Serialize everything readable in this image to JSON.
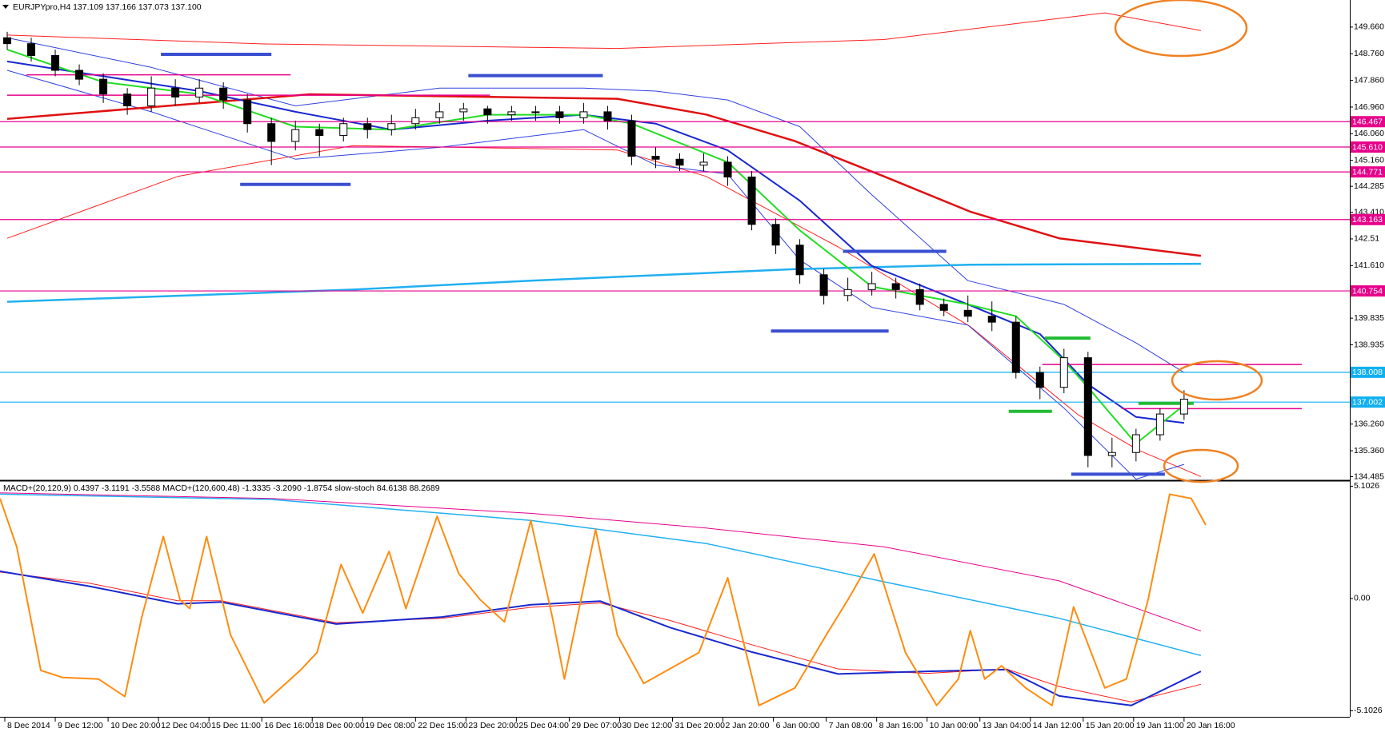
{
  "chart_data": [
    {
      "type": "candlestick",
      "title": "EURJPYpro,H4  137.109 137.166 137.073 137.100",
      "xlim": [
        -0.3,
        55.9
      ],
      "ylim": [
        134.39,
        150.52
      ],
      "yticks": [
        {
          "value": 149.66,
          "label": "149.660"
        },
        {
          "value": 148.76,
          "label": "148.760"
        },
        {
          "value": 147.86,
          "label": "147.860"
        },
        {
          "value": 146.96,
          "label": "146.960"
        },
        {
          "value": 146.06,
          "label": "146.060"
        },
        {
          "value": 145.16,
          "label": "145.160"
        },
        144.285,
        {
          "value": 143.41,
          "label": "143.410"
        },
        142.51,
        {
          "value": 141.61,
          "label": "141.610"
        },
        139.835,
        138.935,
        {
          "value": 136.26,
          "label": "136.260"
        },
        {
          "value": 135.36,
          "label": "135.360"
        },
        134.485
      ],
      "open": [
        149.3,
        149.1,
        148.7,
        148.2,
        147.9,
        147.4,
        147.0,
        147.6,
        147.3,
        147.6,
        147.2,
        146.4,
        145.8,
        146.2,
        146.0,
        146.4,
        146.2,
        146.4,
        146.6,
        146.8,
        146.9,
        146.7,
        146.8,
        146.8,
        146.6,
        146.8,
        146.5,
        145.3,
        145.2,
        145.0,
        145.1,
        144.6,
        143.0,
        142.3,
        141.3,
        140.6,
        140.8,
        141.0,
        140.8,
        140.3,
        140.1,
        139.9,
        139.7,
        138.0,
        137.5,
        138.5,
        135.2,
        135.3,
        135.9,
        136.6
      ],
      "high": [
        149.5,
        149.3,
        148.9,
        148.4,
        148.1,
        147.6,
        148.0,
        147.9,
        147.9,
        147.8,
        147.4,
        146.6,
        146.5,
        146.4,
        146.6,
        146.6,
        146.7,
        146.9,
        147.1,
        147.1,
        147.0,
        147.0,
        147.0,
        147.0,
        147.1,
        147.0,
        146.7,
        145.6,
        145.4,
        145.4,
        145.3,
        144.8,
        143.2,
        142.5,
        141.5,
        141.2,
        141.4,
        141.2,
        141.0,
        140.5,
        140.6,
        140.4,
        139.9,
        138.2,
        138.8,
        138.7,
        135.8,
        136.1,
        136.8,
        137.4
      ],
      "low": [
        148.9,
        148.5,
        148.0,
        147.7,
        147.1,
        146.7,
        146.8,
        147.0,
        147.1,
        146.9,
        146.1,
        145.0,
        145.5,
        145.3,
        145.8,
        145.9,
        146.0,
        146.2,
        146.4,
        146.5,
        146.4,
        146.5,
        146.5,
        146.4,
        146.4,
        146.2,
        145.0,
        144.9,
        144.8,
        144.8,
        144.3,
        142.8,
        142.0,
        141.0,
        140.3,
        140.4,
        140.6,
        140.5,
        140.1,
        139.9,
        139.7,
        139.4,
        137.8,
        137.1,
        137.3,
        134.8,
        134.8,
        135.0,
        135.7,
        136.4
      ],
      "close": [
        149.1,
        148.7,
        148.2,
        147.9,
        147.4,
        147.0,
        147.6,
        147.3,
        147.6,
        147.2,
        146.4,
        145.8,
        146.2,
        146.0,
        146.4,
        146.2,
        146.4,
        146.6,
        146.8,
        146.9,
        146.7,
        146.8,
        146.8,
        146.6,
        146.8,
        146.5,
        145.3,
        145.2,
        145.0,
        145.1,
        144.6,
        143.0,
        142.3,
        141.3,
        140.6,
        140.8,
        141.0,
        140.8,
        140.3,
        140.1,
        139.9,
        139.7,
        138.0,
        137.5,
        138.5,
        135.2,
        135.3,
        135.9,
        136.6,
        137.1
      ],
      "overlays": [
        {
          "color": "#ff2020",
          "width": 1,
          "x": [
            0,
            10.7,
            25.4,
            36.5,
            45.7,
            49.7
          ],
          "values": [
            149.39,
            149.09,
            148.94,
            149.24,
            150.14,
            149.54
          ]
        },
        {
          "color": "#ff2020",
          "width": 1,
          "x": [
            0,
            7.1,
            14.4,
            25.4,
            29.1,
            34.6,
            40.1,
            44.6,
            47.1,
            49.7
          ],
          "values": [
            142.53,
            144.62,
            145.66,
            145.51,
            144.62,
            142.24,
            139.55,
            136.57,
            135.38,
            134.49
          ]
        },
        {
          "color": "#3040e0",
          "width": 1,
          "x": [
            0,
            6,
            12,
            18,
            24,
            27,
            30,
            33,
            36,
            40,
            44,
            47,
            49
          ],
          "values": [
            149.3,
            148.3,
            147.0,
            147.6,
            147.6,
            147.5,
            147.2,
            146.3,
            144.0,
            141.1,
            140.3,
            139.0,
            138.0
          ]
        },
        {
          "color": "#3040e0",
          "width": 1,
          "x": [
            0,
            6,
            12,
            18,
            24,
            27,
            30,
            33,
            36,
            40,
            44,
            47,
            49
          ],
          "values": [
            148.2,
            146.8,
            145.2,
            145.6,
            146.2,
            145.0,
            144.7,
            141.8,
            140.2,
            139.6,
            136.8,
            134.4,
            134.9
          ]
        },
        {
          "color": "#e01010",
          "width": 2.5,
          "x": [
            0,
            12.6,
            25.4,
            29.1,
            32.8,
            36.5,
            40.1,
            43.8,
            49.7
          ],
          "values": [
            146.56,
            147.39,
            147.24,
            146.71,
            145.81,
            144.62,
            143.43,
            142.53,
            141.94
          ]
        },
        {
          "color": "#20b0f0",
          "width": 2.5,
          "x": [
            0,
            14.4,
            21.8,
            32.8,
            40.1,
            49.7
          ],
          "values": [
            140.39,
            140.8,
            141.1,
            141.49,
            141.64,
            141.67
          ]
        },
        {
          "color": "#1828d0",
          "width": 2,
          "x": [
            0,
            4,
            8,
            12,
            16,
            20,
            24,
            27,
            30,
            33,
            36,
            40,
            43,
            45,
            47,
            49
          ],
          "values": [
            148.5,
            148.0,
            147.5,
            146.8,
            146.2,
            146.5,
            146.7,
            146.4,
            145.5,
            143.8,
            141.6,
            140.3,
            139.3,
            137.6,
            136.5,
            136.3
          ]
        },
        {
          "color": "#22dd22",
          "width": 2,
          "x": [
            0,
            4,
            8,
            12,
            16,
            20,
            24,
            26,
            30,
            33,
            36,
            40,
            42,
            44,
            45,
            47,
            49
          ],
          "values": [
            148.9,
            147.8,
            147.4,
            146.3,
            146.2,
            146.7,
            146.7,
            146.4,
            145.1,
            142.8,
            140.9,
            140.3,
            139.9,
            138.4,
            137.5,
            135.6,
            136.9
          ]
        }
      ],
      "levels": [
        {
          "value": 146.467,
          "color": "#e6008a"
        },
        {
          "value": 145.61,
          "label": "145.610",
          "color": "#e6008a"
        },
        {
          "value": 144.771,
          "color": "#e6008a"
        },
        {
          "value": 143.163,
          "color": "#e6008a"
        },
        {
          "value": 140.754,
          "color": "#e6008a"
        },
        {
          "value": 138.008,
          "color": "#10b0f0"
        },
        {
          "value": 137.002,
          "color": "#10b0f0"
        }
      ],
      "segments": [
        {
          "x": [
            6.4,
            11.0
          ],
          "value": 148.74,
          "color": "#3a4fd0",
          "width": 4
        },
        {
          "x": [
            19.2,
            24.8
          ],
          "value": 148.02,
          "color": "#3a4fd0",
          "width": 4
        },
        {
          "x": [
            9.7,
            14.3
          ],
          "value": 144.35,
          "color": "#3a4fd0",
          "width": 4
        },
        {
          "x": [
            34.8,
            39.1
          ],
          "value": 142.09,
          "color": "#3a4fd0",
          "width": 4
        },
        {
          "x": [
            31.8,
            36.7
          ],
          "value": 139.4,
          "color": "#3a4fd0",
          "width": 4
        },
        {
          "x": [
            44.3,
            48.2
          ],
          "value": 134.57,
          "color": "#3a4fd0",
          "width": 4
        },
        {
          "x": [
            43.2,
            45.1
          ],
          "value": 139.16,
          "color": "#22bb33",
          "width": 4
        },
        {
          "x": [
            41.7,
            43.5
          ],
          "value": 136.69,
          "color": "#22bb33",
          "width": 4
        },
        {
          "x": [
            47.1,
            49.4
          ],
          "value": 136.96,
          "color": "#22bb33",
          "width": 4
        },
        {
          "x": [
            0.8,
            11.8
          ],
          "value": 148.05,
          "color": "#e6008a",
          "width": 1.5
        },
        {
          "x": [
            0,
            20.1
          ],
          "value": 147.36,
          "color": "#e6008a",
          "width": 1.5
        },
        {
          "x": [
            43.1,
            53.9
          ],
          "value": 138.27,
          "color": "#e6008a",
          "width": 1.5
        },
        {
          "x": [
            46.4,
            53.9
          ],
          "value": 136.78,
          "color": "#e6008a",
          "width": 1.5
        }
      ]
    },
    {
      "type": "indicator",
      "title": "MACD+(20,120,9) 0.4397 -3.1191 -3.5588  MACD+(120,600,48) -1.3335 -3.2090 -1.8754  slow-stoch 84.6138 88.2689",
      "xlim": [
        -0.3,
        55.9
      ],
      "ylim": [
        -5.34,
        5.3
      ],
      "y2lim": [
        0,
        100
      ],
      "yticks": [
        5.1026,
        {
          "value": 0,
          "label": "0.00"
        },
        -5.1026
      ],
      "xticks": [
        {
          "value": -0.1,
          "label": "8 Dec 2014"
        },
        {
          "value": 2.0,
          "label": "9 Dec 12:00"
        },
        {
          "value": 4.2,
          "label": "10 Dec 20:00"
        },
        {
          "value": 6.3,
          "label": "12 Dec 04:00"
        },
        {
          "value": 8.4,
          "label": "15 Dec 11:00"
        },
        {
          "value": 10.6,
          "label": "16 Dec 16:00"
        },
        {
          "value": 12.7,
          "label": "18 Dec 00:00"
        },
        {
          "value": 14.8,
          "label": "19 Dec 08:00"
        },
        {
          "value": 17.0,
          "label": "22 Dec 15:00"
        },
        {
          "value": 19.1,
          "label": "23 Dec 20:00"
        },
        {
          "value": 21.2,
          "label": "25 Dec 04:00"
        },
        {
          "value": 23.4,
          "label": "29 Dec 07:00"
        },
        {
          "value": 25.5,
          "label": "30 Dec 12:00"
        },
        {
          "value": 27.7,
          "label": "31 Dec 20:00"
        },
        {
          "value": 29.8,
          "label": "2 Jan 20:00"
        },
        {
          "value": 31.9,
          "label": "6 Jan 00:00"
        },
        {
          "value": 34.1,
          "label": "7 Jan 08:00"
        },
        {
          "value": 36.2,
          "label": "8 Jan 16:00"
        },
        {
          "value": 38.3,
          "label": "10 Jan 00:00"
        },
        {
          "value": 40.5,
          "label": "13 Jan 04:00"
        },
        {
          "value": 42.6,
          "label": "14 Jan 12:00"
        },
        {
          "value": 44.8,
          "label": "15 Jan 20:00"
        },
        {
          "value": 46.9,
          "label": "19 Jan 11:00"
        },
        {
          "value": 49.0,
          "label": "20 Jan 16:00"
        }
      ],
      "series": [
        {
          "color": "#e6008a",
          "width": 1,
          "x": [
            -0.3,
            11.0,
            21.8,
            29.1,
            36.5,
            43.8,
            49.7
          ],
          "values": [
            4.8,
            4.55,
            3.87,
            3.2,
            2.35,
            0.8,
            -1.48
          ]
        },
        {
          "color": "#20b0f0",
          "width": 1.5,
          "x": [
            -0.3,
            11.0,
            21.8,
            29.1,
            36.5,
            43.8,
            49.7
          ],
          "values": [
            4.74,
            4.5,
            3.55,
            2.5,
            0.76,
            -0.9,
            -2.59
          ]
        },
        {
          "color": "#ff2020",
          "width": 1,
          "x": [
            -0.3,
            3.4,
            7.1,
            8.9,
            13.7,
            18.1,
            21.8,
            24.7,
            27.6,
            31.0,
            34.6,
            38.3,
            41.6,
            43.8,
            46.8,
            49.7
          ],
          "values": [
            1.2,
            0.7,
            -0.1,
            -0.1,
            -1.1,
            -0.9,
            -0.4,
            -0.2,
            -1.0,
            -2.1,
            -3.2,
            -3.4,
            -3.2,
            -4.0,
            -4.7,
            -3.9
          ]
        },
        {
          "color": "#1828d0",
          "width": 2,
          "x": [
            -0.3,
            3.4,
            7.1,
            8.9,
            13.7,
            18.1,
            21.8,
            24.7,
            27.6,
            31.0,
            34.6,
            38.3,
            41.6,
            43.8,
            46.8,
            49.7
          ],
          "values": [
            1.24,
            0.56,
            -0.24,
            -0.16,
            -1.16,
            -0.84,
            -0.28,
            -0.12,
            -1.32,
            -2.43,
            -3.43,
            -3.31,
            -3.23,
            -4.43,
            -4.86,
            -3.31
          ]
        },
        {
          "color": "#ff8c10",
          "width": 2,
          "axis": "y2",
          "x": [
            -0.3,
            0.4,
            1.4,
            2.3,
            3.8,
            4.9,
            5.6,
            6.5,
            7.2,
            7.6,
            8.3,
            9.3,
            10.7,
            12.2,
            12.9,
            13.9,
            14.8,
            15.9,
            16.6,
            17.9,
            18.8,
            19.7,
            20.7,
            21.8,
            22.7,
            23.2,
            24.5,
            25.4,
            26.5,
            28.8,
            30.0,
            31.3,
            32.8,
            34.1,
            35.0,
            36.1,
            37.4,
            38.7,
            39.6,
            40.1,
            40.7,
            41.4,
            42.4,
            43.5,
            44.4,
            45.7,
            46.6,
            47.5,
            48.4,
            49.3,
            49.9
          ],
          "values": [
            92.9,
            72.2,
            19.5,
            16.5,
            15.8,
            8.3,
            42.1,
            76.7,
            49.6,
            45.9,
            76.7,
            34.6,
            5.6,
            19.5,
            27.1,
            64.7,
            44.0,
            70.3,
            45.9,
            85.3,
            60.9,
            49.6,
            40.2,
            83.5,
            42.1,
            15.8,
            79.7,
            34.6,
            13.9,
            27.1,
            59.0,
            4.5,
            12.0,
            34.6,
            49.6,
            69.2,
            27.1,
            4.5,
            15.8,
            36.5,
            15.8,
            21.4,
            12.0,
            4.5,
            46.6,
            12.0,
            15.8,
            49.6,
            94.7,
            92.9,
            81.6
          ]
        }
      ]
    }
  ]
}
